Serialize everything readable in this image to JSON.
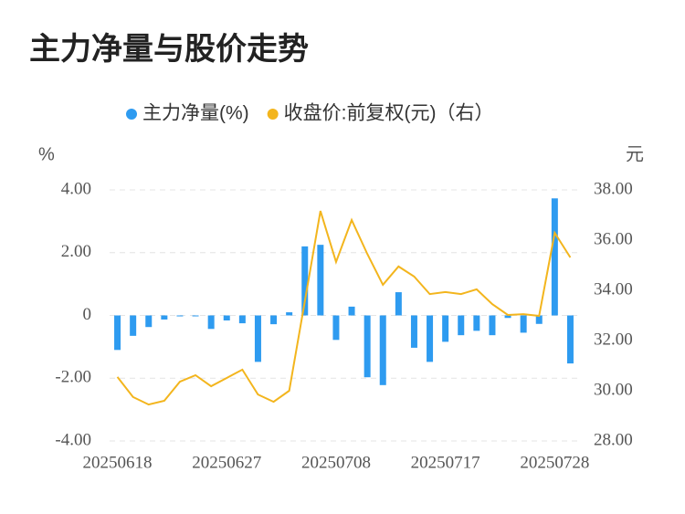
{
  "chart_data": {
    "type": "bar-line",
    "title": "主力净量与股价走势",
    "y_label": "%",
    "y2_label": "元",
    "categories": [
      "20250618",
      null,
      null,
      null,
      null,
      null,
      null,
      "20250627",
      null,
      null,
      null,
      null,
      null,
      null,
      "20250708",
      null,
      null,
      null,
      null,
      null,
      null,
      "20250717",
      null,
      null,
      null,
      null,
      null,
      null,
      "20250728",
      null
    ],
    "series": [
      {
        "name": "主力净量(%)",
        "type": "bar",
        "color": "#2e9bf0",
        "values": [
          -1.1,
          -0.65,
          -0.37,
          -0.13,
          -0.03,
          -0.03,
          -0.43,
          -0.16,
          -0.25,
          -1.48,
          -0.28,
          0.1,
          2.2,
          2.25,
          -0.78,
          0.28,
          -1.97,
          -2.22,
          0.74,
          -1.03,
          -1.48,
          -0.84,
          -0.63,
          -0.49,
          -0.63,
          -0.08,
          -0.55,
          -0.27,
          3.73,
          -1.53
        ]
      },
      {
        "name": "收盘价:前复权(元)（右）",
        "type": "line",
        "axis": "y2",
        "color": "#f3b51d",
        "values": [
          30.55,
          29.75,
          29.45,
          29.6,
          30.36,
          30.62,
          30.18,
          30.51,
          30.84,
          29.85,
          29.56,
          30.0,
          33.56,
          37.16,
          35.13,
          36.8,
          35.45,
          34.22,
          34.95,
          34.55,
          33.85,
          33.93,
          33.85,
          34.04,
          33.45,
          33.02,
          33.05,
          32.98,
          36.29,
          35.31
        ]
      }
    ],
    "ylim": [
      -4,
      4
    ],
    "yticks": [
      {
        "value": 4,
        "label": "4.00"
      },
      {
        "value": 2,
        "label": "2.00"
      },
      0,
      {
        "value": -2,
        "label": "-2.00"
      },
      {
        "value": -4,
        "label": "-4.00"
      }
    ],
    "y2lim": [
      28,
      38
    ],
    "y2ticks": [
      {
        "value": 38,
        "label": "38.00"
      },
      {
        "value": 36,
        "label": "36.00"
      },
      {
        "value": 34,
        "label": "34.00"
      },
      {
        "value": 32,
        "label": "32.00"
      },
      {
        "value": 30,
        "label": "30.00"
      },
      {
        "value": 28,
        "label": "28.00"
      }
    ],
    "grid": true
  }
}
